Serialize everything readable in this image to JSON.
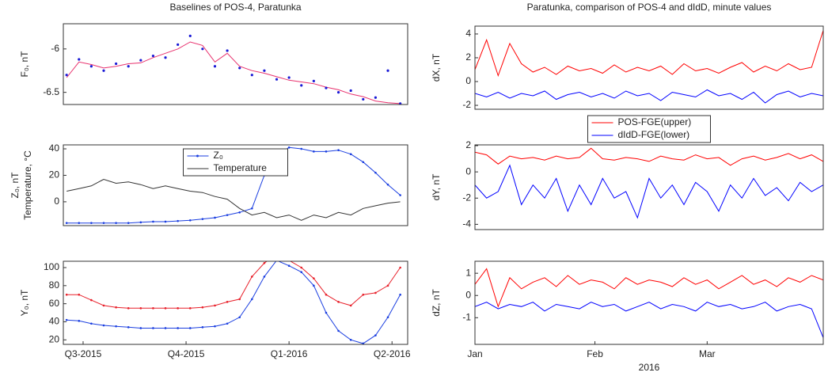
{
  "chart_data": [
    {
      "type": "line",
      "title": "Baselines of POS-4, Paratunka",
      "ylabel": "F₀, nT",
      "x": [
        2015.46,
        2015.49,
        2015.52,
        2015.55,
        2015.58,
        2015.61,
        2015.64,
        2015.67,
        2015.7,
        2015.73,
        2015.76,
        2015.79,
        2015.82,
        2015.85,
        2015.88,
        2015.91,
        2015.94,
        2015.97,
        2016.0,
        2016.03,
        2016.06,
        2016.09,
        2016.12,
        2016.15,
        2016.18,
        2016.21,
        2016.24,
        2016.27
      ],
      "xlim": [
        2015.452,
        2016.288
      ],
      "ylim": [
        -6.64,
        -5.71
      ],
      "yticks": [
        -6,
        -6.5
      ],
      "series": [
        {
          "color": "#e8326e",
          "values": [
            -6.33,
            -6.15,
            -6.18,
            -6.22,
            -6.2,
            -6.17,
            -6.16,
            -6.1,
            -6.05,
            -6.0,
            -5.92,
            -5.96,
            -6.15,
            -6.05,
            -6.2,
            -6.25,
            -6.28,
            -6.32,
            -6.36,
            -6.38,
            -6.4,
            -6.44,
            -6.47,
            -6.52,
            -6.55,
            -6.6,
            -6.62,
            -6.63
          ]
        },
        {
          "color": "#1a1ad6",
          "mode": "markers",
          "values": [
            -6.3,
            -6.12,
            -6.2,
            -6.25,
            -6.17,
            -6.2,
            -6.13,
            -6.08,
            -6.1,
            -5.95,
            -5.85,
            -6.0,
            -6.2,
            -6.02,
            -6.22,
            -6.3,
            -6.25,
            -6.35,
            -6.33,
            -6.42,
            -6.37,
            -6.45,
            -6.5,
            -6.48,
            -6.58,
            -6.56,
            -6.25,
            -6.63
          ]
        }
      ]
    },
    {
      "type": "line",
      "ylabel": "Z₀, nT",
      "ylabel2": "Temperature, °C",
      "legend": "north",
      "x": [
        2015.46,
        2015.49,
        2015.52,
        2015.55,
        2015.58,
        2015.61,
        2015.64,
        2015.67,
        2015.7,
        2015.73,
        2015.76,
        2015.79,
        2015.82,
        2015.85,
        2015.88,
        2015.91,
        2015.94,
        2015.97,
        2016.0,
        2016.03,
        2016.06,
        2016.09,
        2016.12,
        2016.15,
        2016.18,
        2016.21,
        2016.24,
        2016.27
      ],
      "xlim": [
        2015.452,
        2016.288
      ],
      "ylim": [
        -18,
        43
      ],
      "yticks": [
        0,
        20,
        40
      ],
      "series": [
        {
          "name": "Z₀",
          "color": "#1a3ee0",
          "marker": true,
          "values": [
            -16,
            -16,
            -16,
            -16,
            -16,
            -16,
            -15.5,
            -15,
            -15,
            -14.5,
            -14,
            -13,
            -12,
            -10,
            -8,
            -5,
            20,
            35,
            41,
            40,
            38,
            38,
            39,
            36,
            30,
            22,
            13,
            5
          ]
        },
        {
          "name": "Temperature",
          "color": "#333333",
          "values": [
            8,
            10,
            12,
            17,
            14,
            15,
            13,
            10,
            12,
            10,
            8,
            7,
            4,
            2,
            -5,
            -10,
            -8,
            -12,
            -10,
            -14,
            -10,
            -12,
            -8,
            -10,
            -5,
            -3,
            -1,
            0
          ]
        }
      ]
    },
    {
      "type": "line",
      "ylabel": "Y₀, nT",
      "x": [
        2015.46,
        2015.49,
        2015.52,
        2015.55,
        2015.58,
        2015.61,
        2015.64,
        2015.67,
        2015.7,
        2015.73,
        2015.76,
        2015.79,
        2015.82,
        2015.85,
        2015.88,
        2015.91,
        2015.94,
        2015.97,
        2016.0,
        2016.03,
        2016.06,
        2016.09,
        2016.12,
        2016.15,
        2016.18,
        2016.21,
        2016.24,
        2016.27
      ],
      "xlim": [
        2015.452,
        2016.288
      ],
      "ylim": [
        15,
        107
      ],
      "yticks": [
        20,
        40,
        60,
        80,
        100
      ],
      "xticks": [
        {
          "value": 2015.5,
          "label": "Q3-2015"
        },
        {
          "value": 2015.75,
          "label": "Q4-2015"
        },
        {
          "value": 2016.0,
          "label": "Q1-2016"
        },
        {
          "value": 2016.25,
          "label": "Q2-2016"
        }
      ],
      "series": [
        {
          "color": "#e8202a",
          "marker": true,
          "values": [
            70,
            70,
            64,
            58,
            56,
            55,
            55,
            55,
            55,
            55,
            55,
            56,
            58,
            62,
            65,
            90,
            105,
            115,
            108,
            100,
            88,
            70,
            62,
            58,
            70,
            72,
            80,
            100
          ]
        },
        {
          "color": "#1a3ee0",
          "marker": true,
          "values": [
            42,
            41,
            38,
            36,
            35,
            34,
            33,
            33,
            33,
            33,
            33,
            34,
            35,
            38,
            45,
            65,
            90,
            108,
            102,
            95,
            80,
            50,
            30,
            20,
            16,
            25,
            45,
            70
          ]
        }
      ]
    },
    {
      "type": "line",
      "title": "Paratunka, comparison of POS-4 and dIdD, minute values",
      "ylabel": "dX, nT",
      "x": [
        1,
        4,
        7,
        10,
        13,
        16,
        19,
        22,
        25,
        28,
        31,
        34,
        37,
        40,
        43,
        46,
        49,
        52,
        55,
        58,
        61,
        64,
        67,
        70,
        73,
        76,
        79,
        82,
        85,
        88,
        91
      ],
      "xlim": [
        1,
        91
      ],
      "ylim": [
        -2.33,
        4.66
      ],
      "yticks": [
        -2,
        0,
        2,
        4
      ],
      "series": [
        {
          "color": "#ff0000",
          "values": [
            1.0,
            3.5,
            0.5,
            3.2,
            1.5,
            0.8,
            1.2,
            0.6,
            1.3,
            0.9,
            1.1,
            0.7,
            1.4,
            0.8,
            1.2,
            0.9,
            1.3,
            0.6,
            1.5,
            0.9,
            1.1,
            0.7,
            1.2,
            1.6,
            0.8,
            1.3,
            0.9,
            1.5,
            1.0,
            1.2,
            4.3
          ]
        },
        {
          "color": "#0000ff",
          "values": [
            -1,
            -1.3,
            -0.9,
            -1.4,
            -1.0,
            -1.2,
            -0.8,
            -1.5,
            -1.1,
            -0.9,
            -1.3,
            -1.0,
            -1.4,
            -0.8,
            -1.2,
            -1.0,
            -1.6,
            -0.9,
            -1.1,
            -1.3,
            -0.7,
            -1.2,
            -1.0,
            -1.5,
            -0.9,
            -1.8,
            -1.1,
            -0.8,
            -1.3,
            -1.0,
            -1.2
          ]
        }
      ]
    },
    {
      "type": "line",
      "ylabel": "dY, nT",
      "legend": "northoutside",
      "x": [
        1,
        4,
        7,
        10,
        13,
        16,
        19,
        22,
        25,
        28,
        31,
        34,
        37,
        40,
        43,
        46,
        49,
        52,
        55,
        58,
        61,
        64,
        67,
        70,
        73,
        76,
        79,
        82,
        85,
        88,
        91
      ],
      "xlim": [
        1,
        91
      ],
      "ylim": [
        -4.4,
        2.06
      ],
      "yticks": [
        -4,
        -2,
        0,
        2
      ],
      "series": [
        {
          "name": "POS-FGE(upper)",
          "color": "#ff0000",
          "values": [
            1.5,
            1.3,
            0.6,
            1.2,
            1.0,
            1.1,
            0.9,
            1.2,
            1.0,
            1.1,
            1.8,
            1.0,
            0.9,
            1.1,
            1.0,
            0.8,
            1.2,
            1.0,
            0.9,
            1.3,
            1.0,
            1.1,
            0.5,
            1.0,
            1.2,
            0.9,
            1.1,
            1.4,
            1.0,
            1.3,
            0.8
          ]
        },
        {
          "name": "dIdD-FGE(lower)",
          "color": "#0000ff",
          "values": [
            -1,
            -2,
            -1.5,
            0.5,
            -2.5,
            -1,
            -2,
            -0.5,
            -3,
            -1,
            -2.5,
            -0.5,
            -2,
            -1.5,
            -3.5,
            -0.5,
            -2,
            -1,
            -2.5,
            -0.8,
            -1.5,
            -3,
            -1,
            -2,
            -0.5,
            -1.8,
            -1.2,
            -2.2,
            -0.8,
            -1.5,
            -1
          ]
        }
      ]
    },
    {
      "type": "line",
      "ylabel": "dZ, nT",
      "xlabel": "2016",
      "x": [
        1,
        4,
        7,
        10,
        13,
        16,
        19,
        22,
        25,
        28,
        31,
        34,
        37,
        40,
        43,
        46,
        49,
        52,
        55,
        58,
        61,
        64,
        67,
        70,
        73,
        76,
        79,
        82,
        85,
        88,
        91
      ],
      "xlim": [
        1,
        91
      ],
      "ylim": [
        -2.2,
        1.54
      ],
      "yticks": [
        -1,
        0,
        1
      ],
      "xticks": [
        {
          "value": 1,
          "label": "Jan"
        },
        {
          "value": 32,
          "label": "Feb"
        },
        {
          "value": 61,
          "label": "Mar"
        }
      ],
      "series": [
        {
          "color": "#ff0000",
          "values": [
            0.5,
            1.2,
            -0.5,
            0.8,
            0.3,
            0.6,
            0.8,
            0.4,
            0.9,
            0.5,
            0.7,
            0.6,
            0.3,
            0.8,
            0.5,
            0.7,
            0.6,
            0.4,
            0.8,
            0.5,
            0.7,
            0.3,
            0.6,
            0.9,
            0.5,
            0.7,
            0.4,
            0.8,
            0.6,
            0.9,
            0.7
          ]
        },
        {
          "color": "#0000ff",
          "values": [
            -0.5,
            -0.3,
            -0.6,
            -0.4,
            -0.5,
            -0.3,
            -0.7,
            -0.4,
            -0.5,
            -0.6,
            -0.3,
            -0.5,
            -0.4,
            -0.7,
            -0.5,
            -0.3,
            -0.6,
            -0.4,
            -0.5,
            -0.7,
            -0.3,
            -0.5,
            -0.4,
            -0.6,
            -0.5,
            -0.3,
            -0.7,
            -0.5,
            -0.4,
            -0.6,
            -1.9
          ]
        }
      ]
    }
  ]
}
